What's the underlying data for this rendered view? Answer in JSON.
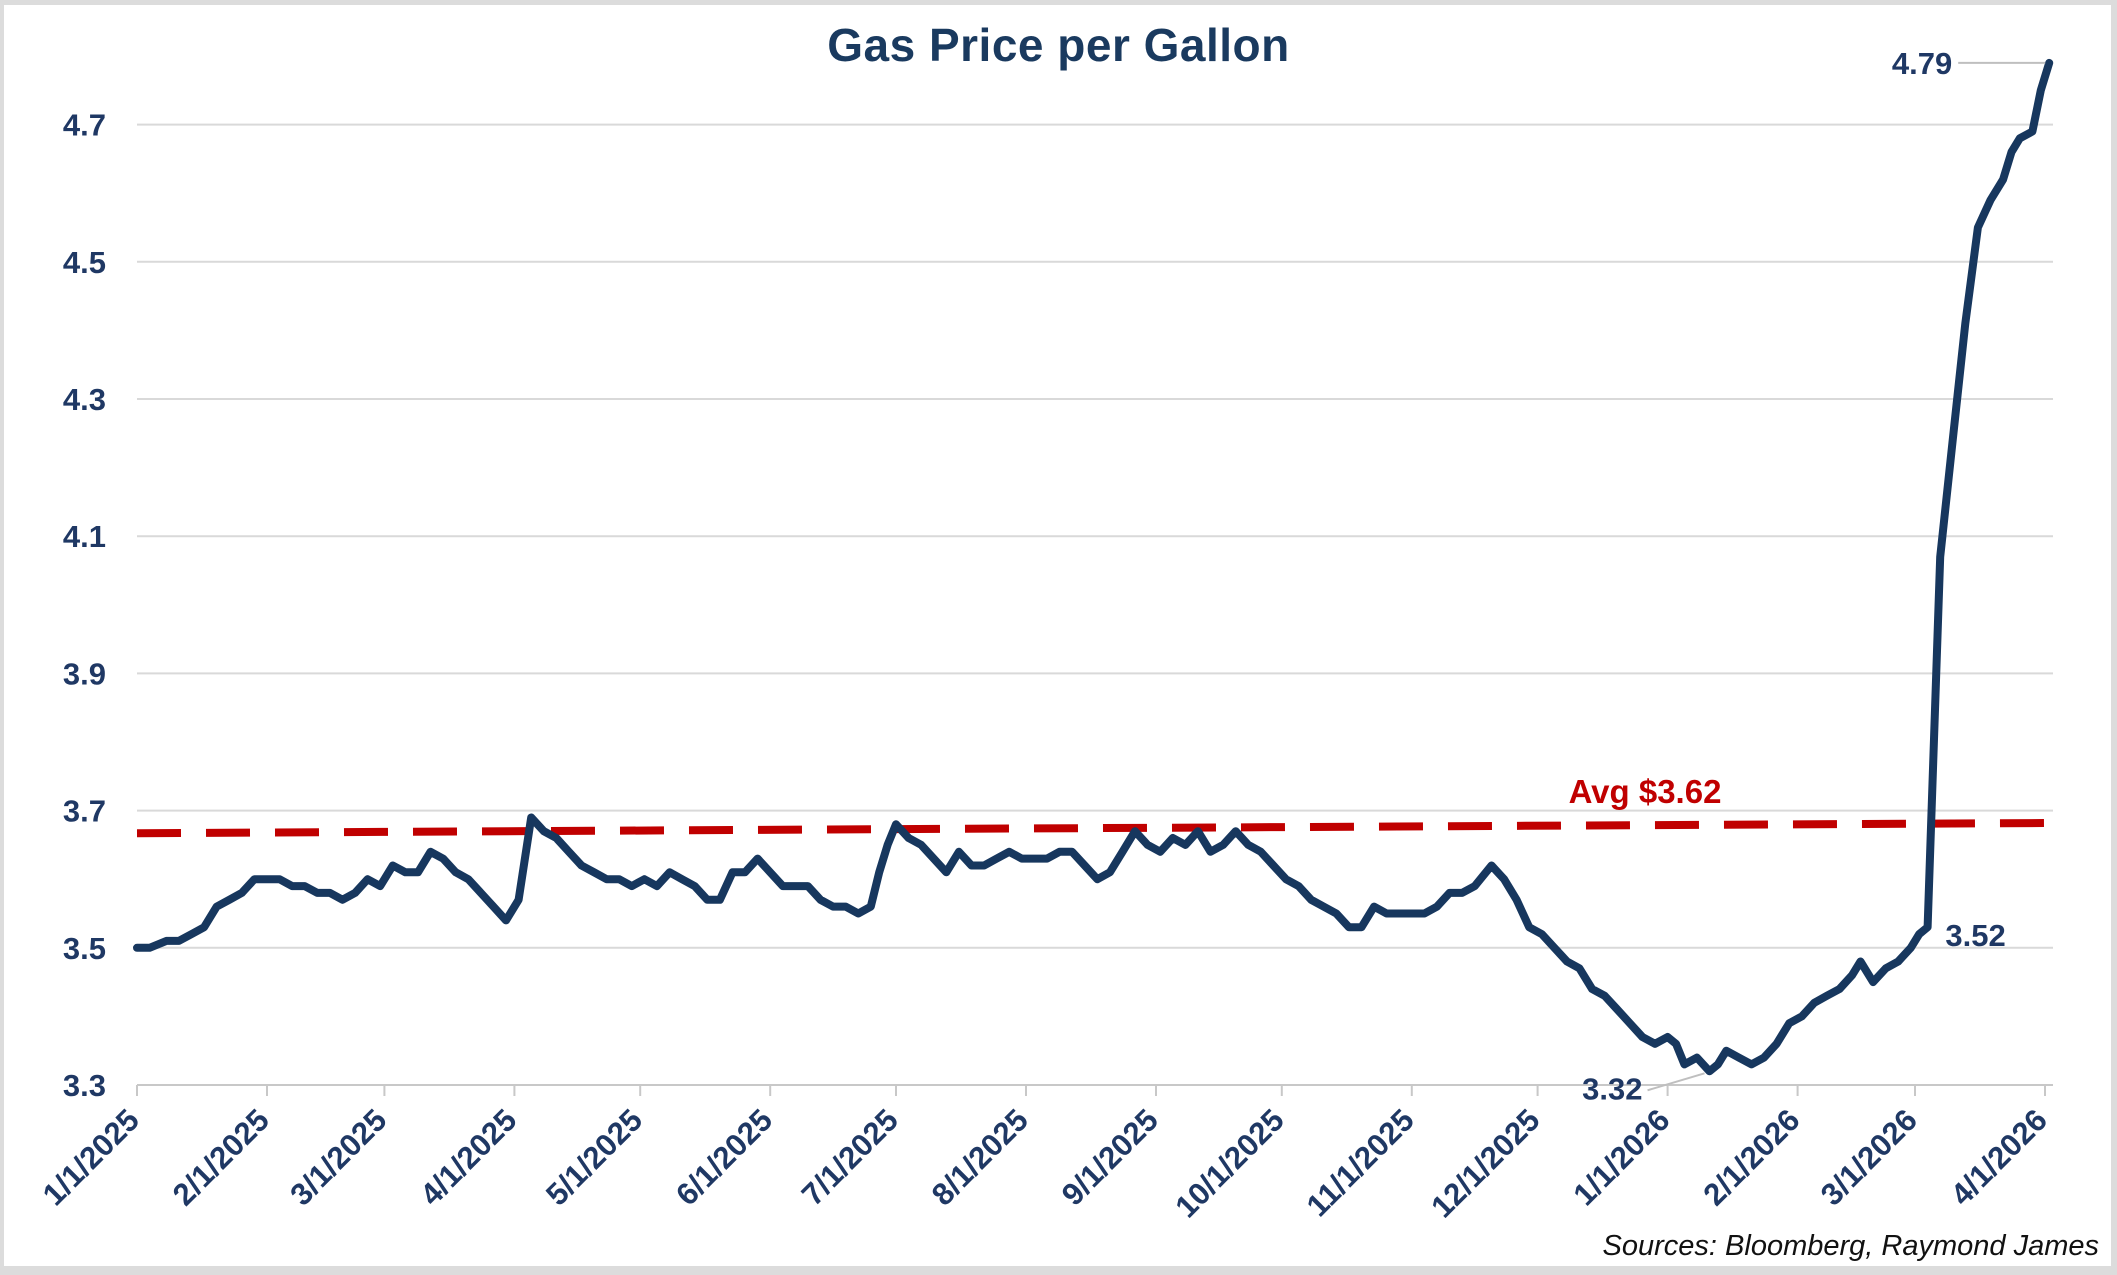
{
  "chart_data": {
    "type": "line",
    "title": "Gas Price per Gallon",
    "source_note": "Sources: Bloomberg, Raymond James",
    "grid": {
      "show_horizontal": true,
      "show_vertical": false,
      "color": "#d9d9d9",
      "axis_color": "#c8c8c8"
    },
    "colors": {
      "title": "#1a3a5f",
      "axis_labels": "#1f3864",
      "line": "#17375e",
      "trendline": "#c00000",
      "leader": "#bfbfbf",
      "source": "#111111"
    },
    "y_axis": {
      "min": 3.3,
      "max": 4.8,
      "tick_step": 0.2,
      "ticks": [
        3.3,
        3.5,
        3.7,
        3.9,
        4.1,
        4.3,
        4.5,
        4.7
      ]
    },
    "x_axis": {
      "start_date": "1/1/2025",
      "end_date": "4/1/2026",
      "tick_labels": [
        "1/1/2025",
        "2/1/2025",
        "3/1/2025",
        "4/1/2025",
        "5/1/2025",
        "6/1/2025",
        "7/1/2025",
        "8/1/2025",
        "9/1/2025",
        "10/1/2025",
        "11/1/2025",
        "12/1/2025",
        "1/1/2026",
        "2/1/2026",
        "3/1/2026",
        "4/1/2026"
      ],
      "label_rotation_deg": -45
    },
    "trendline": {
      "label": "Avg $3.62",
      "average_value": 3.62,
      "style": "dashed",
      "color": "#c00000",
      "plotted_start_value": 3.667,
      "plotted_end_value": 3.682
    },
    "annotations": [
      {
        "text": "4.79",
        "date": "4/2/2026",
        "value": 4.79,
        "placement": "left-of-point",
        "leader": true
      },
      {
        "text": "3.52",
        "date": "3/3/2026",
        "value": 3.52,
        "placement": "right-below",
        "leader": false
      },
      {
        "text": "3.32",
        "date": "1/11/2026",
        "value": 3.32,
        "placement": "left-below",
        "leader": true
      }
    ],
    "series": [
      {
        "name": "Gas Price per Gallon",
        "color": "#17375e",
        "points": [
          [
            "1/1/2025",
            3.5
          ],
          [
            "1/4/2025",
            3.5
          ],
          [
            "1/8/2025",
            3.51
          ],
          [
            "1/11/2025",
            3.51
          ],
          [
            "1/14/2025",
            3.52
          ],
          [
            "1/17/2025",
            3.53
          ],
          [
            "1/20/2025",
            3.56
          ],
          [
            "1/23/2025",
            3.57
          ],
          [
            "1/26/2025",
            3.58
          ],
          [
            "1/29/2025",
            3.6
          ],
          [
            "2/1/2025",
            3.6
          ],
          [
            "2/4/2025",
            3.6
          ],
          [
            "2/7/2025",
            3.59
          ],
          [
            "2/10/2025",
            3.59
          ],
          [
            "2/13/2025",
            3.58
          ],
          [
            "2/16/2025",
            3.58
          ],
          [
            "2/19/2025",
            3.57
          ],
          [
            "2/22/2025",
            3.58
          ],
          [
            "2/25/2025",
            3.6
          ],
          [
            "2/28/2025",
            3.59
          ],
          [
            "3/3/2025",
            3.62
          ],
          [
            "3/6/2025",
            3.61
          ],
          [
            "3/9/2025",
            3.61
          ],
          [
            "3/12/2025",
            3.64
          ],
          [
            "3/15/2025",
            3.63
          ],
          [
            "3/18/2025",
            3.61
          ],
          [
            "3/21/2025",
            3.6
          ],
          [
            "3/24/2025",
            3.58
          ],
          [
            "3/27/2025",
            3.56
          ],
          [
            "3/30/2025",
            3.54
          ],
          [
            "4/2/2025",
            3.57
          ],
          [
            "4/5/2025",
            3.69
          ],
          [
            "4/8/2025",
            3.67
          ],
          [
            "4/11/2025",
            3.66
          ],
          [
            "4/14/2025",
            3.64
          ],
          [
            "4/17/2025",
            3.62
          ],
          [
            "4/20/2025",
            3.61
          ],
          [
            "4/23/2025",
            3.6
          ],
          [
            "4/26/2025",
            3.6
          ],
          [
            "4/29/2025",
            3.59
          ],
          [
            "5/2/2025",
            3.6
          ],
          [
            "5/5/2025",
            3.59
          ],
          [
            "5/8/2025",
            3.61
          ],
          [
            "5/11/2025",
            3.6
          ],
          [
            "5/14/2025",
            3.59
          ],
          [
            "5/17/2025",
            3.57
          ],
          [
            "5/20/2025",
            3.57
          ],
          [
            "5/23/2025",
            3.61
          ],
          [
            "5/26/2025",
            3.61
          ],
          [
            "5/29/2025",
            3.63
          ],
          [
            "6/1/2025",
            3.61
          ],
          [
            "6/4/2025",
            3.59
          ],
          [
            "6/7/2025",
            3.59
          ],
          [
            "6/10/2025",
            3.59
          ],
          [
            "6/13/2025",
            3.57
          ],
          [
            "6/16/2025",
            3.56
          ],
          [
            "6/19/2025",
            3.56
          ],
          [
            "6/22/2025",
            3.55
          ],
          [
            "6/25/2025",
            3.56
          ],
          [
            "6/27/2025",
            3.61
          ],
          [
            "6/29/2025",
            3.65
          ],
          [
            "7/1/2025",
            3.68
          ],
          [
            "7/4/2025",
            3.66
          ],
          [
            "7/7/2025",
            3.65
          ],
          [
            "7/10/2025",
            3.63
          ],
          [
            "7/13/2025",
            3.61
          ],
          [
            "7/16/2025",
            3.64
          ],
          [
            "7/19/2025",
            3.62
          ],
          [
            "7/22/2025",
            3.62
          ],
          [
            "7/25/2025",
            3.63
          ],
          [
            "7/28/2025",
            3.64
          ],
          [
            "7/31/2025",
            3.63
          ],
          [
            "8/3/2025",
            3.63
          ],
          [
            "8/6/2025",
            3.63
          ],
          [
            "8/9/2025",
            3.64
          ],
          [
            "8/12/2025",
            3.64
          ],
          [
            "8/15/2025",
            3.62
          ],
          [
            "8/18/2025",
            3.6
          ],
          [
            "8/21/2025",
            3.61
          ],
          [
            "8/24/2025",
            3.64
          ],
          [
            "8/27/2025",
            3.67
          ],
          [
            "8/30/2025",
            3.65
          ],
          [
            "9/2/2025",
            3.64
          ],
          [
            "9/5/2025",
            3.66
          ],
          [
            "9/8/2025",
            3.65
          ],
          [
            "9/11/2025",
            3.67
          ],
          [
            "9/14/2025",
            3.64
          ],
          [
            "9/17/2025",
            3.65
          ],
          [
            "9/20/2025",
            3.67
          ],
          [
            "9/23/2025",
            3.65
          ],
          [
            "9/26/2025",
            3.64
          ],
          [
            "9/29/2025",
            3.62
          ],
          [
            "10/2/2025",
            3.6
          ],
          [
            "10/5/2025",
            3.59
          ],
          [
            "10/8/2025",
            3.57
          ],
          [
            "10/11/2025",
            3.56
          ],
          [
            "10/14/2025",
            3.55
          ],
          [
            "10/17/2025",
            3.53
          ],
          [
            "10/20/2025",
            3.53
          ],
          [
            "10/23/2025",
            3.56
          ],
          [
            "10/26/2025",
            3.55
          ],
          [
            "10/29/2025",
            3.55
          ],
          [
            "11/1/2025",
            3.55
          ],
          [
            "11/4/2025",
            3.55
          ],
          [
            "11/7/2025",
            3.56
          ],
          [
            "11/10/2025",
            3.58
          ],
          [
            "11/13/2025",
            3.58
          ],
          [
            "11/16/2025",
            3.59
          ],
          [
            "11/20/2025",
            3.62
          ],
          [
            "11/23/2025",
            3.6
          ],
          [
            "11/26/2025",
            3.57
          ],
          [
            "11/29/2025",
            3.53
          ],
          [
            "12/2/2025",
            3.52
          ],
          [
            "12/5/2025",
            3.5
          ],
          [
            "12/8/2025",
            3.48
          ],
          [
            "12/11/2025",
            3.47
          ],
          [
            "12/14/2025",
            3.44
          ],
          [
            "12/17/2025",
            3.43
          ],
          [
            "12/20/2025",
            3.41
          ],
          [
            "12/23/2025",
            3.39
          ],
          [
            "12/26/2025",
            3.37
          ],
          [
            "12/29/2025",
            3.36
          ],
          [
            "1/1/2026",
            3.37
          ],
          [
            "1/3/2026",
            3.36
          ],
          [
            "1/5/2026",
            3.33
          ],
          [
            "1/8/2026",
            3.34
          ],
          [
            "1/11/2026",
            3.32
          ],
          [
            "1/13/2026",
            3.33
          ],
          [
            "1/15/2026",
            3.35
          ],
          [
            "1/18/2026",
            3.34
          ],
          [
            "1/21/2026",
            3.33
          ],
          [
            "1/24/2026",
            3.34
          ],
          [
            "1/27/2026",
            3.36
          ],
          [
            "1/30/2026",
            3.39
          ],
          [
            "2/2/2026",
            3.4
          ],
          [
            "2/5/2026",
            3.42
          ],
          [
            "2/8/2026",
            3.43
          ],
          [
            "2/11/2026",
            3.44
          ],
          [
            "2/14/2026",
            3.46
          ],
          [
            "2/16/2026",
            3.48
          ],
          [
            "2/19/2026",
            3.45
          ],
          [
            "2/22/2026",
            3.47
          ],
          [
            "2/25/2026",
            3.48
          ],
          [
            "2/28/2026",
            3.5
          ],
          [
            "3/2/2026",
            3.52
          ],
          [
            "3/4/2026",
            3.53
          ],
          [
            "3/7/2026",
            4.07
          ],
          [
            "3/10/2026",
            4.24
          ],
          [
            "3/13/2026",
            4.41
          ],
          [
            "3/16/2026",
            4.55
          ],
          [
            "3/19/2026",
            4.59
          ],
          [
            "3/22/2026",
            4.62
          ],
          [
            "3/24/2026",
            4.66
          ],
          [
            "3/26/2026",
            4.68
          ],
          [
            "3/29/2026",
            4.69
          ],
          [
            "3/31/2026",
            4.75
          ],
          [
            "4/2/2026",
            4.79
          ]
        ]
      }
    ]
  }
}
